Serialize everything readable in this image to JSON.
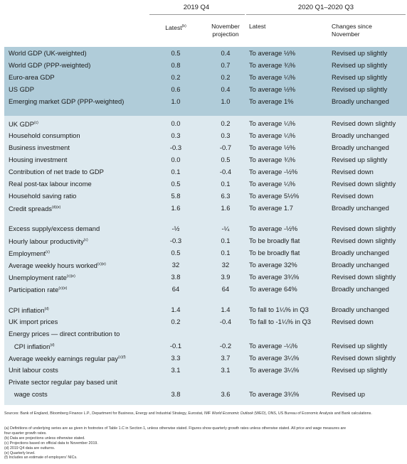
{
  "header": {
    "group1": "2019 Q4",
    "group2": "2020 Q1–2020 Q3",
    "col_latest": "Latest",
    "col_latest_note": "(b)",
    "col_nov_line1": "November",
    "col_nov_line2": "projection",
    "col_latest2": "Latest",
    "col_changes_line1": "Changes since",
    "col_changes_line2": "November"
  },
  "colors": {
    "band_dark": "#b0ccd9",
    "band_light": "#dde9ef"
  },
  "sections": [
    {
      "rows": [
        {
          "label": "World GDP (UK-weighted)",
          "note": "",
          "latest": "0.5",
          "nov": "0.4",
          "latest2": "To average ½%",
          "change": "Revised up slightly"
        },
        {
          "label": "World GDP (PPP-weighted)",
          "note": "",
          "latest": "0.8",
          "nov": "0.7",
          "latest2": "To average ¾%",
          "change": "Revised up slightly"
        },
        {
          "label": "Euro-area GDP",
          "note": "",
          "latest": "0.2",
          "nov": "0.2",
          "latest2": "To average ¼%",
          "change": "Revised up slightly"
        },
        {
          "label": "US GDP",
          "note": "",
          "latest": "0.6",
          "nov": "0.4",
          "latest2": "To average ½%",
          "change": "Revised up slightly"
        },
        {
          "label": "Emerging market GDP (PPP-weighted)",
          "note": "",
          "latest": "1.0",
          "nov": "1.0",
          "latest2": "To average 1%",
          "change": "Broadly unchanged"
        }
      ]
    },
    {
      "rows": [
        {
          "label": "UK GDP",
          "note": "(c)",
          "latest": "0.0",
          "nov": "0.2",
          "latest2": "To average ¼%",
          "change": "Revised down slightly"
        },
        {
          "label": "Household consumption",
          "note": "",
          "latest": "0.3",
          "nov": "0.3",
          "latest2": "To average ¼%",
          "change": "Broadly unchanged"
        },
        {
          "label": "Business investment",
          "note": "",
          "latest": "-0.3",
          "nov": "-0.7",
          "latest2": "To average ½%",
          "change": "Broadly unchanged"
        },
        {
          "label": "Housing investment",
          "note": "",
          "latest": "0.0",
          "nov": "0.5",
          "latest2": "To average ¾%",
          "change": "Revised up slightly"
        },
        {
          "label": "Contribution of net trade to GDP",
          "note": "",
          "latest": "0.1",
          "nov": "-0.4",
          "latest2": "To average -½%",
          "change": "Revised down"
        },
        {
          "label": "Real post-tax labour income",
          "note": "",
          "latest": "0.5",
          "nov": "0.1",
          "latest2": "To average ¼%",
          "change": "Revised down slightly"
        },
        {
          "label": "Household saving ratio",
          "note": "",
          "latest": "5.8",
          "nov": "6.3",
          "latest2": "To average 5½%",
          "change": "Revised down"
        },
        {
          "label": "Credit spreads",
          "note": "(d)(e)",
          "latest": "1.6",
          "nov": "1.6",
          "latest2": "To average 1.7",
          "change": "Broadly unchanged"
        }
      ]
    },
    {
      "rows": [
        {
          "label": "Excess supply/excess demand",
          "note": "",
          "latest": "-½",
          "nov": "-¼",
          "latest2": "To average -½%",
          "change": "Revised down slightly"
        },
        {
          "label": "Hourly labour productivity",
          "note": "(c)",
          "latest": "-0.3",
          "nov": "0.1",
          "latest2": "To be broadly flat",
          "change": "Revised down slightly"
        },
        {
          "label": "Employment",
          "note": "(c)",
          "latest": "0.5",
          "nov": "0.1",
          "latest2": "To be broadly flat",
          "change": "Broadly unchanged"
        },
        {
          "label": "Average weekly hours worked",
          "note": "(c)(e)",
          "latest": "32",
          "nov": "32",
          "latest2": "To average 32%",
          "change": "Broadly unchanged"
        },
        {
          "label": "Unemployment rate",
          "note": "(c)(e)",
          "latest": "3.8",
          "nov": "3.9",
          "latest2": "To average 3¾%",
          "change": "Revised down slightly"
        },
        {
          "label": "Participation rate",
          "note": "(c)(e)",
          "latest": "64",
          "nov": "64",
          "latest2": "To average 64%",
          "change": "Broadly unchanged"
        }
      ]
    },
    {
      "rows": [
        {
          "label": "CPI inflation",
          "note": "(d)",
          "latest": "1.4",
          "nov": "1.4",
          "latest2": "To fall to 1¼% in Q3",
          "change": "Broadly unchanged"
        },
        {
          "label": "UK import prices",
          "note": "",
          "latest": "0.2",
          "nov": "-0.4",
          "latest2": "To fall to -1¼% in Q3",
          "change": "Revised down"
        },
        {
          "label": "Energy prices — direct contribution to",
          "note": "",
          "latest": "",
          "nov": "",
          "latest2": "",
          "change": ""
        },
        {
          "label": "   CPI inflation",
          "note": "(d)",
          "latest": "-0.1",
          "nov": "-0.2",
          "latest2": "To average -¼%",
          "change": "Revised up slightly"
        },
        {
          "label": "Average weekly earnings regular pay",
          "note": "(c)(f)",
          "latest": "3.3",
          "nov": "3.7",
          "latest2": "To average 3¼%",
          "change": "Revised down slightly"
        },
        {
          "label": "Unit labour costs",
          "note": "",
          "latest": "3.1",
          "nov": "3.1",
          "latest2": "To average 3¼%",
          "change": "Revised up slightly"
        },
        {
          "label": "Private sector regular pay based unit",
          "note": "",
          "latest": "",
          "nov": "",
          "latest2": "",
          "change": ""
        },
        {
          "label": "   wage costs",
          "note": "",
          "latest": "3.8",
          "nov": "3.6",
          "latest2": "To average 3¾%",
          "change": "Revised up"
        }
      ]
    }
  ],
  "sources": {
    "before": "Sources: Bank of England, Bloomberg Finance L.P., Department for Business, Energy and Industrial Strategy, Eurostat, IMF ",
    "italic": "World Economic Outlook",
    "after": " (WEO), ONS, US Bureau of Economic Analysis and Bank calculations."
  },
  "notes": [
    "(a) Definitions of underlying series are as given in footnotes of Table 1.C in Section 1, unless otherwise stated. Figures show quarterly growth rates unless otherwise stated. All price and wage measures are",
    "      four-quarter growth rates.",
    "(b) Data are projections unless otherwise stated.",
    "(c) Projections based on official data to November 2019.",
    "(d) 2019 Q4 data are outturns.",
    "(e) Quarterly level.",
    "(f) Includes an estimate of employers' NICs."
  ]
}
